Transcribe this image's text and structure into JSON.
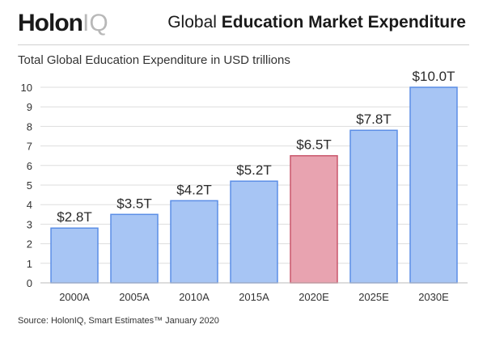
{
  "header": {
    "logo_main": "Holon",
    "logo_suffix": "IQ",
    "title_light": "Global ",
    "title_bold": "Education Market Expenditure"
  },
  "subtitle": "Total Global Education Expenditure in USD trillions",
  "source": "Source: HolonIQ, Smart Estimates™ January 2020",
  "chart_data": {
    "type": "bar",
    "categories": [
      "2000A",
      "2005A",
      "2010A",
      "2015A",
      "2020E",
      "2025E",
      "2030E"
    ],
    "values": [
      2.8,
      3.5,
      4.2,
      5.2,
      6.5,
      7.8,
      10.0
    ],
    "data_labels": [
      "$2.8T",
      "$3.5T",
      "$4.2T",
      "$5.2T",
      "$6.5T",
      "$7.8T",
      "$10.0T"
    ],
    "yticks": [
      0,
      1,
      2,
      3,
      4,
      5,
      6,
      7,
      8,
      9,
      10
    ],
    "ylim": [
      0,
      10
    ],
    "grid": true,
    "legend": "none",
    "colors": {
      "bar": "#a7c5f4",
      "bar_stroke": "#5b8ee6",
      "highlight": "#e8a3b0",
      "highlight_stroke": "#c9566b",
      "highlight_index": 4,
      "grid": "#dddddd"
    }
  }
}
